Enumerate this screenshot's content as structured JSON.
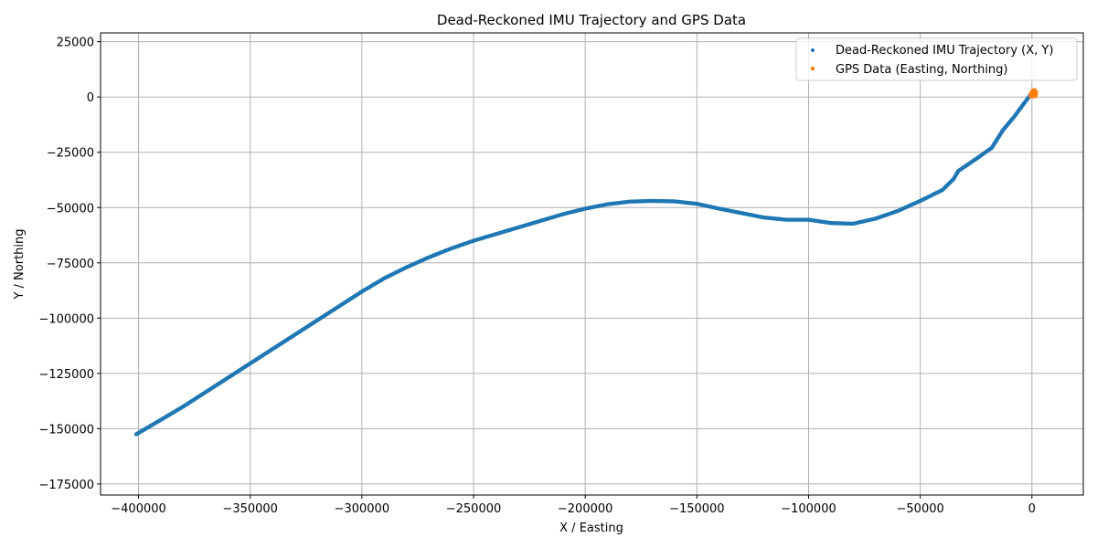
{
  "chart_data": {
    "type": "scatter",
    "title": "Dead-Reckoned IMU Trajectory and GPS Data",
    "xlabel": "X / Easting",
    "ylabel": "Y / Northing",
    "xlim": [
      -417000,
      23000
    ],
    "ylim": [
      -180000,
      29000
    ],
    "xticks": [
      -400000,
      -350000,
      -300000,
      -250000,
      -200000,
      -150000,
      -100000,
      -50000,
      0
    ],
    "xtick_labels": [
      "−400000",
      "−350000",
      "−300000",
      "−250000",
      "−200000",
      "−150000",
      "−100000",
      "−50000",
      "0"
    ],
    "yticks": [
      25000,
      0,
      -25000,
      -50000,
      -75000,
      -100000,
      -125000,
      -150000,
      -175000
    ],
    "ytick_labels": [
      "25000",
      "0",
      "−25000",
      "−50000",
      "−75000",
      "−100000",
      "−125000",
      "−150000",
      "−175000"
    ],
    "grid": true,
    "legend_position": "top-right",
    "series": [
      {
        "name": "Dead-Reckoned IMU Trajectory (X, Y)",
        "color": "#1f77b4",
        "marker": "circle",
        "points": [
          [
            -401000,
            -152500
          ],
          [
            -390000,
            -146000
          ],
          [
            -380000,
            -140000
          ],
          [
            -370000,
            -133500
          ],
          [
            -360000,
            -127000
          ],
          [
            -350000,
            -120500
          ],
          [
            -340000,
            -114000
          ],
          [
            -330000,
            -107500
          ],
          [
            -320000,
            -101000
          ],
          [
            -310000,
            -94500
          ],
          [
            -300000,
            -88000
          ],
          [
            -290000,
            -82000
          ],
          [
            -280000,
            -77000
          ],
          [
            -270000,
            -72500
          ],
          [
            -260000,
            -68500
          ],
          [
            -250000,
            -65000
          ],
          [
            -240000,
            -62000
          ],
          [
            -230000,
            -59000
          ],
          [
            -220000,
            -56000
          ],
          [
            -210000,
            -53000
          ],
          [
            -200000,
            -50500
          ],
          [
            -190000,
            -48500
          ],
          [
            -180000,
            -47300
          ],
          [
            -170000,
            -47000
          ],
          [
            -160000,
            -47200
          ],
          [
            -150000,
            -48300
          ],
          [
            -140000,
            -50500
          ],
          [
            -130000,
            -52500
          ],
          [
            -120000,
            -54500
          ],
          [
            -110000,
            -55500
          ],
          [
            -100000,
            -55500
          ],
          [
            -90000,
            -57000
          ],
          [
            -80000,
            -57300
          ],
          [
            -70000,
            -55000
          ],
          [
            -60000,
            -51500
          ],
          [
            -50000,
            -47000
          ],
          [
            -40000,
            -42000
          ],
          [
            -35000,
            -37000
          ],
          [
            -33000,
            -33500
          ],
          [
            -25000,
            -28000
          ],
          [
            -18000,
            -23000
          ],
          [
            -13000,
            -15000
          ],
          [
            -8000,
            -9000
          ],
          [
            -4000,
            -3500
          ],
          [
            -1000,
            500
          ],
          [
            1000,
            1500
          ]
        ]
      },
      {
        "name": "GPS Data (Easting, Northing)",
        "color": "#ff7f0e",
        "marker": "square",
        "points": [
          [
            -400,
            700
          ],
          [
            0,
            1500
          ],
          [
            400,
            2200
          ],
          [
            800,
            900
          ],
          [
            1200,
            1800
          ],
          [
            600,
            2600
          ],
          [
            1500,
            1100
          ],
          [
            200,
            400
          ],
          [
            1000,
            2900
          ],
          [
            1700,
            2000
          ],
          [
            -200,
            1200
          ],
          [
            1300,
            600
          ]
        ]
      }
    ]
  }
}
